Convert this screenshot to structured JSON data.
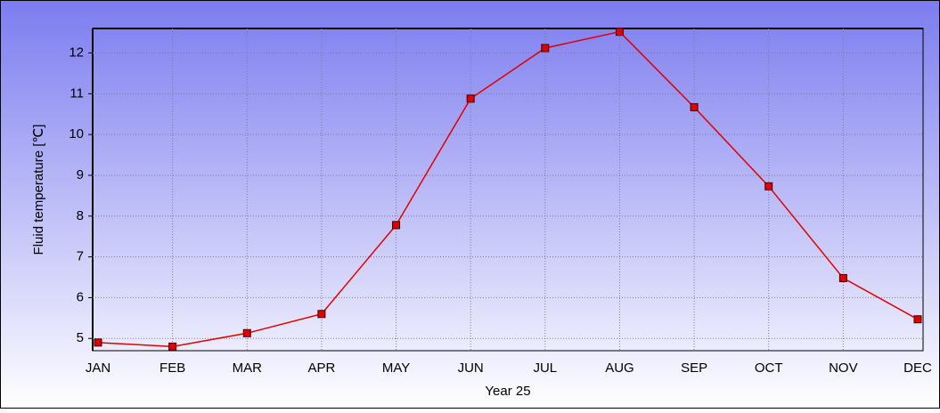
{
  "chart_data": {
    "type": "line",
    "y_label": "Fluid temperature [℃]",
    "x_label": "Year 25",
    "categories": [
      "JAN",
      "FEB",
      "MAR",
      "APR",
      "MAY",
      "JUN",
      "JUL",
      "AUG",
      "SEP",
      "OCT",
      "NOV",
      "DEC"
    ],
    "series": [
      {
        "color": "#e00000",
        "values": [
          4.9,
          4.8,
          5.13,
          5.6,
          7.78,
          10.88,
          12.12,
          12.52,
          10.67,
          8.73,
          6.48,
          5.47
        ]
      }
    ],
    "ylim": [
      4.7,
      12.6
    ],
    "yticks": [
      5,
      6,
      7,
      8,
      9,
      10,
      11,
      12
    ],
    "grid": true
  }
}
